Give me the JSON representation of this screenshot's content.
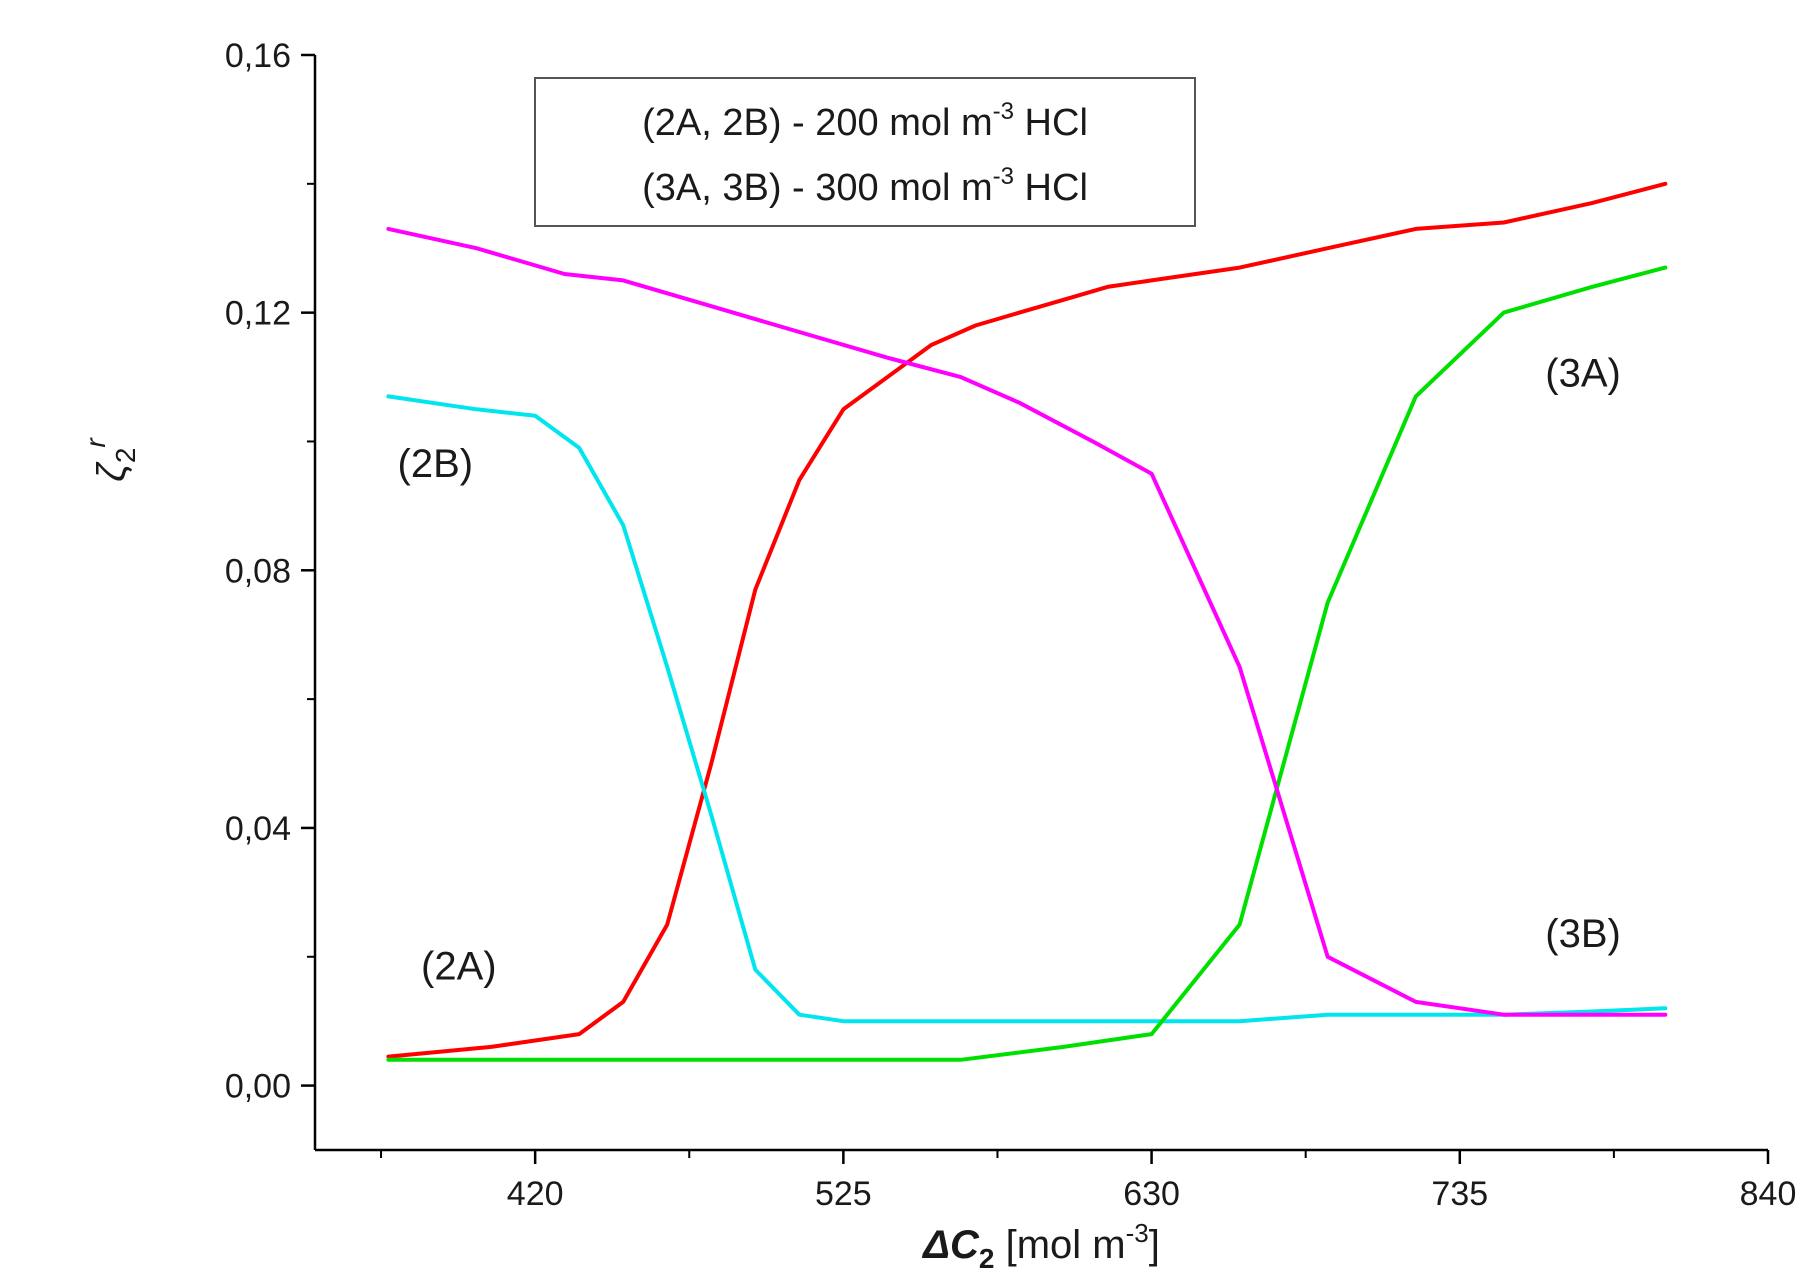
{
  "chart_data": {
    "type": "line",
    "title": "",
    "xlabel": {
      "symbol": "ΔC",
      "sub": "2",
      "unit_open": " [mol m",
      "unit_sup": "-3",
      "unit_close": "]"
    },
    "ylabel": {
      "symbol": "ζ",
      "sub": "2",
      "sup": "r"
    },
    "xlim": [
      345,
      840
    ],
    "ylim": [
      -0.01,
      0.16
    ],
    "x_ticks": [
      420,
      525,
      630,
      735,
      840
    ],
    "x_tick_labels": [
      "420",
      "525",
      "630",
      "735",
      "840"
    ],
    "x_minor_ticks": [
      367.5,
      472.5,
      577.5,
      682.5,
      787.5
    ],
    "y_ticks": [
      0,
      0.04,
      0.08,
      0.12,
      0.16
    ],
    "y_tick_labels": [
      "0,00",
      "0,04",
      "0,08",
      "0,12",
      "0,16"
    ],
    "y_minor_ticks": [
      0.02,
      0.06,
      0.1,
      0.14
    ],
    "legend": {
      "position": "top-center",
      "entries": [
        {
          "prefix": "(2A, 2B) - 200 mol m",
          "sup": "-3",
          "suffix": " HCl"
        },
        {
          "prefix": "(3A, 3B) - 300 mol m",
          "sup": "-3",
          "suffix": " HCl"
        }
      ]
    },
    "series": [
      {
        "name": "(2A)",
        "color": "#ff0000",
        "x": [
          370,
          405,
          435,
          450,
          465,
          480,
          495,
          510,
          525,
          540,
          555,
          570,
          585,
          600,
          615,
          630,
          660,
          690,
          720,
          750,
          780,
          805
        ],
        "y": [
          0.0045,
          0.006,
          0.008,
          0.013,
          0.025,
          0.05,
          0.077,
          0.094,
          0.105,
          0.11,
          0.115,
          0.118,
          0.12,
          0.122,
          0.124,
          0.125,
          0.127,
          0.13,
          0.133,
          0.134,
          0.137,
          0.14
        ]
      },
      {
        "name": "(2B)",
        "color": "#00e5ee",
        "x": [
          370,
          400,
          420,
          435,
          450,
          465,
          480,
          495,
          510,
          525,
          560,
          600,
          630,
          660,
          690,
          720,
          750,
          780,
          805
        ],
        "y": [
          0.107,
          0.105,
          0.104,
          0.099,
          0.087,
          0.065,
          0.042,
          0.018,
          0.011,
          0.01,
          0.01,
          0.01,
          0.01,
          0.01,
          0.011,
          0.011,
          0.011,
          0.0115,
          0.012
        ]
      },
      {
        "name": "(3A)",
        "color": "#00e000",
        "x": [
          370,
          420,
          480,
          530,
          565,
          600,
          630,
          660,
          690,
          720,
          750,
          780,
          805
        ],
        "y": [
          0.004,
          0.004,
          0.004,
          0.004,
          0.004,
          0.006,
          0.008,
          0.025,
          0.075,
          0.107,
          0.12,
          0.124,
          0.127
        ]
      },
      {
        "name": "(3B)",
        "color": "#ff00ff",
        "x": [
          370,
          400,
          430,
          450,
          480,
          510,
          540,
          565,
          585,
          610,
          630,
          660,
          690,
          720,
          750,
          780,
          805
        ],
        "y": [
          0.133,
          0.13,
          0.126,
          0.125,
          0.121,
          0.117,
          0.113,
          0.11,
          0.106,
          0.1,
          0.095,
          0.065,
          0.02,
          0.013,
          0.011,
          0.011,
          0.011
        ]
      }
    ],
    "annotations": [
      {
        "text": "(2B)",
        "x": 386,
        "y": 0.0945
      },
      {
        "text": "(2A)",
        "x": 394,
        "y": 0.0165
      },
      {
        "text": "(3A)",
        "x": 777,
        "y": 0.1085
      },
      {
        "text": "(3B)",
        "x": 777,
        "y": 0.0215
      }
    ]
  }
}
